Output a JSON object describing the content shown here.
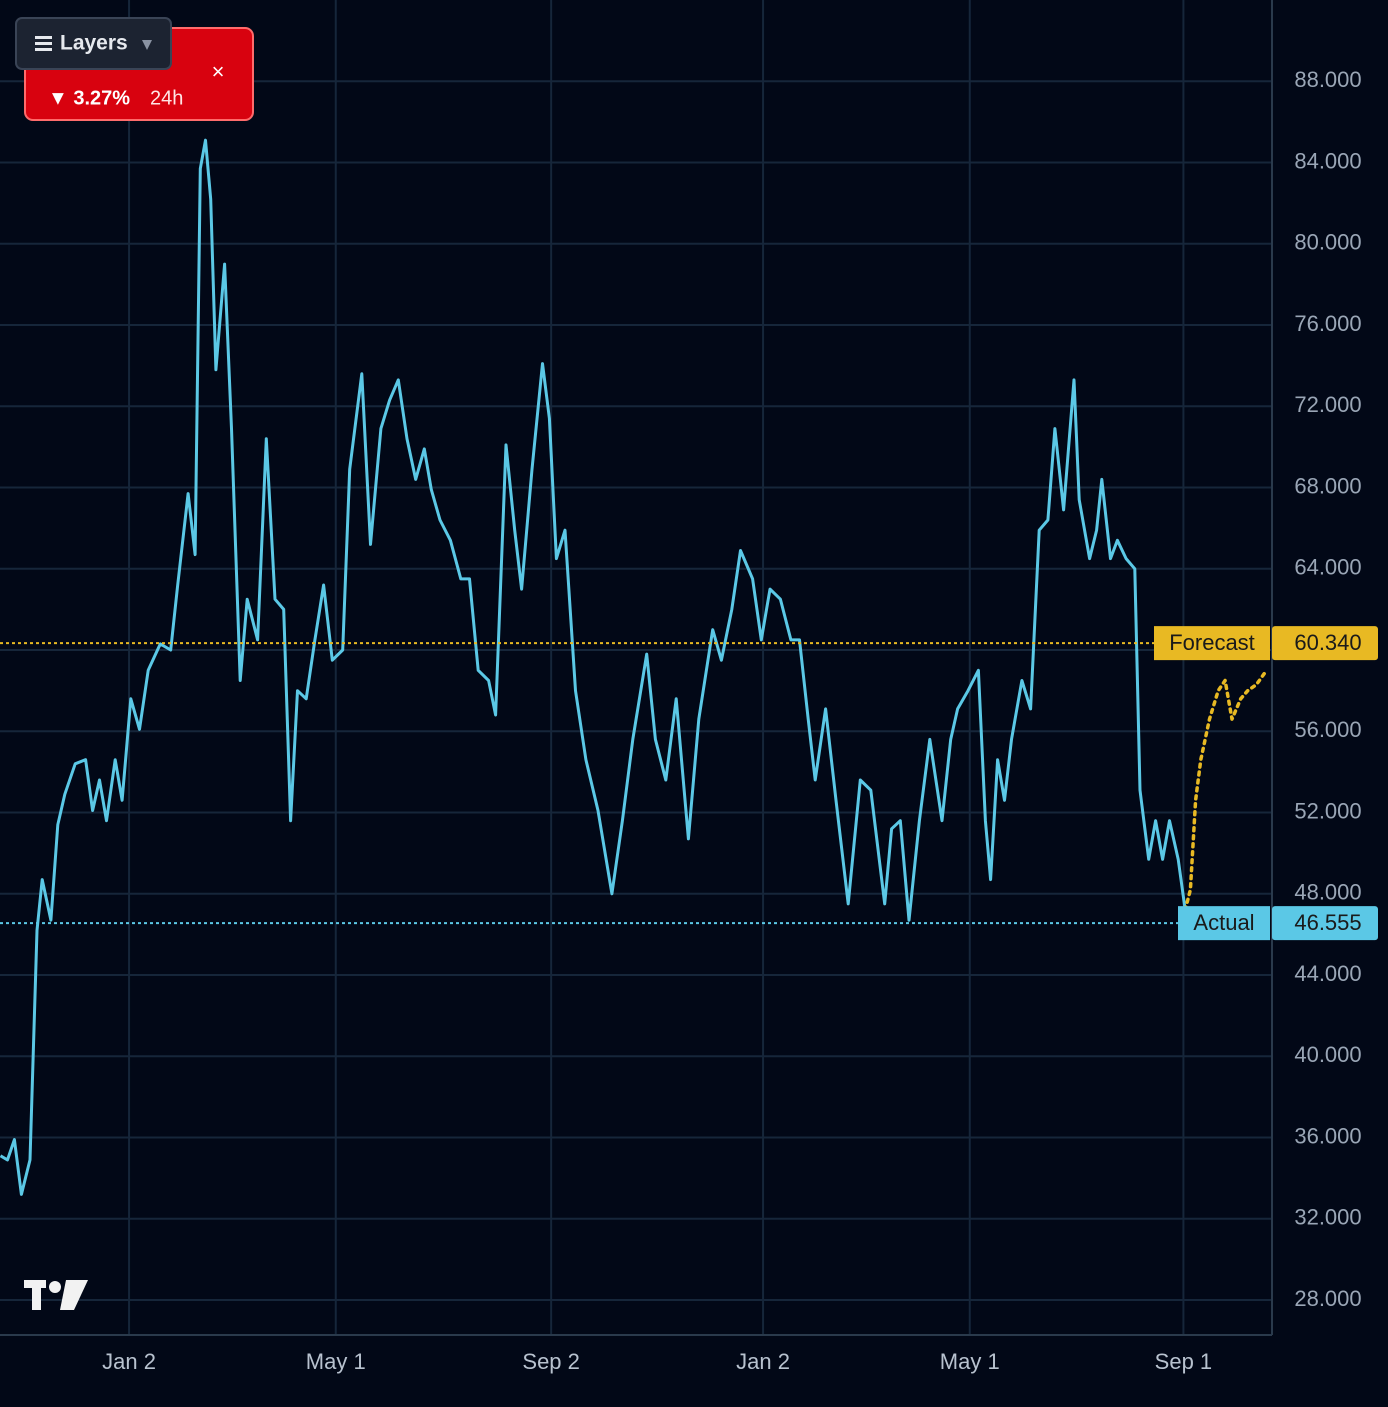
{
  "chart_data": {
    "type": "line",
    "xlim": [
      -74.3,
      658
    ],
    "ylim": [
      26.28,
      92.0
    ],
    "xticks": [
      {
        "value": 0,
        "label": "Jan 2"
      },
      {
        "value": 119,
        "label": "May 1"
      },
      {
        "value": 243,
        "label": "Sep 2"
      },
      {
        "value": 365,
        "label": "Jan 2"
      },
      {
        "value": 484,
        "label": "May 1"
      },
      {
        "value": 607,
        "label": "Sep 1"
      }
    ],
    "yticks": [
      {
        "value": 88,
        "label": "88.000"
      },
      {
        "value": 84,
        "label": "84.000"
      },
      {
        "value": 80,
        "label": "80.000"
      },
      {
        "value": 76,
        "label": "76.000"
      },
      {
        "value": 72,
        "label": "72.000"
      },
      {
        "value": 68,
        "label": "68.000"
      },
      {
        "value": 64,
        "label": "64.000"
      },
      {
        "value": 60,
        "label": "60.000"
      },
      {
        "value": 56,
        "label": "56.000"
      },
      {
        "value": 52,
        "label": "52.000"
      },
      {
        "value": 48,
        "label": "48.000"
      },
      {
        "value": 44,
        "label": "44.000"
      },
      {
        "value": 40,
        "label": "40.000"
      },
      {
        "value": 36,
        "label": "36.000"
      },
      {
        "value": 32,
        "label": "32.000"
      },
      {
        "value": 28,
        "label": "28.000"
      }
    ],
    "grid": true,
    "series": [
      {
        "color": "#5bc8e6",
        "line_style": "solid",
        "x": [
          -74,
          -70,
          -66,
          -62,
          -57,
          -53,
          -50,
          -45,
          -41,
          -37,
          -31,
          -25,
          -21,
          -17,
          -13,
          -8,
          -4,
          1,
          6,
          11,
          18,
          24,
          28,
          34,
          38,
          41,
          44,
          47,
          50,
          55,
          59,
          64,
          68,
          74,
          79,
          84,
          89,
          93,
          97,
          102,
          107,
          112,
          117,
          123,
          127,
          134,
          139,
          145,
          150,
          155,
          160,
          165,
          170,
          174,
          179,
          185,
          191,
          196,
          201,
          207,
          211,
          217,
          222,
          226,
          232,
          238,
          242,
          246,
          251,
          257,
          263,
          270,
          278,
          284,
          290,
          298,
          303,
          309,
          315,
          322,
          328,
          336,
          341,
          347,
          352,
          359,
          364,
          369,
          375,
          381,
          386,
          391,
          395,
          401,
          407,
          414,
          421,
          427,
          435,
          439,
          444,
          449,
          455,
          461,
          468,
          473,
          477,
          483,
          489,
          493,
          496,
          500,
          504,
          508,
          514,
          519,
          524,
          529,
          533,
          538,
          544,
          547,
          553,
          557,
          560,
          565,
          569,
          574,
          579,
          582,
          587,
          591,
          595,
          599,
          604,
          608
        ],
        "values": [
          35.1,
          34.9,
          35.9,
          33.2,
          34.9,
          46.2,
          48.7,
          46.7,
          51.4,
          52.9,
          54.4,
          54.6,
          52.1,
          53.6,
          51.6,
          54.6,
          52.6,
          57.6,
          56.1,
          59.0,
          60.3,
          60.0,
          63.2,
          67.7,
          64.7,
          83.7,
          85.1,
          82.2,
          73.8,
          79.0,
          70.9,
          58.5,
          62.5,
          60.5,
          70.4,
          62.5,
          62.0,
          51.6,
          58.0,
          57.6,
          60.5,
          63.2,
          59.5,
          60.0,
          68.9,
          73.6,
          65.2,
          70.9,
          72.3,
          73.3,
          70.4,
          68.4,
          69.9,
          67.9,
          66.4,
          65.4,
          63.5,
          63.5,
          59.0,
          58.5,
          56.8,
          70.1,
          65.9,
          63.0,
          68.9,
          74.1,
          71.4,
          64.5,
          65.9,
          58.0,
          54.6,
          52.1,
          48.0,
          51.6,
          55.6,
          59.8,
          55.6,
          53.6,
          57.6,
          50.7,
          56.6,
          61.0,
          59.5,
          62.0,
          64.9,
          63.5,
          60.5,
          63.0,
          62.5,
          60.5,
          60.5,
          56.6,
          53.6,
          57.1,
          52.6,
          47.5,
          53.6,
          53.1,
          47.5,
          51.2,
          51.6,
          46.7,
          51.6,
          55.6,
          51.6,
          55.6,
          57.1,
          58.0,
          59.0,
          51.6,
          48.7,
          54.6,
          52.6,
          55.6,
          58.5,
          57.1,
          65.9,
          66.4,
          70.9,
          66.9,
          73.3,
          67.4,
          64.5,
          65.9,
          68.4,
          64.5,
          65.4,
          64.5,
          64.0,
          53.1,
          49.7,
          51.6,
          49.7,
          51.6,
          49.7,
          47.2
        ]
      },
      {
        "color": "#e8b923",
        "line_style": "dotted",
        "x": [
          608,
          611,
          614,
          617,
          622,
          627,
          631,
          635,
          640,
          644,
          649,
          654
        ],
        "values": [
          47.2,
          48.2,
          52.6,
          54.6,
          56.6,
          58.0,
          58.5,
          56.6,
          57.6,
          58.0,
          58.3,
          58.9
        ]
      }
    ],
    "reference_lines": [
      {
        "name": "Forecast",
        "value": 60.34,
        "label": "60.340",
        "color": "#e8b923"
      },
      {
        "name": "Actual",
        "value": 46.555,
        "label": "46.555",
        "color": "#5bc8e6"
      }
    ]
  },
  "badge": {
    "change": "▼ 3.27%",
    "period": "24h"
  },
  "toolbar": {
    "layers": "Layers"
  }
}
